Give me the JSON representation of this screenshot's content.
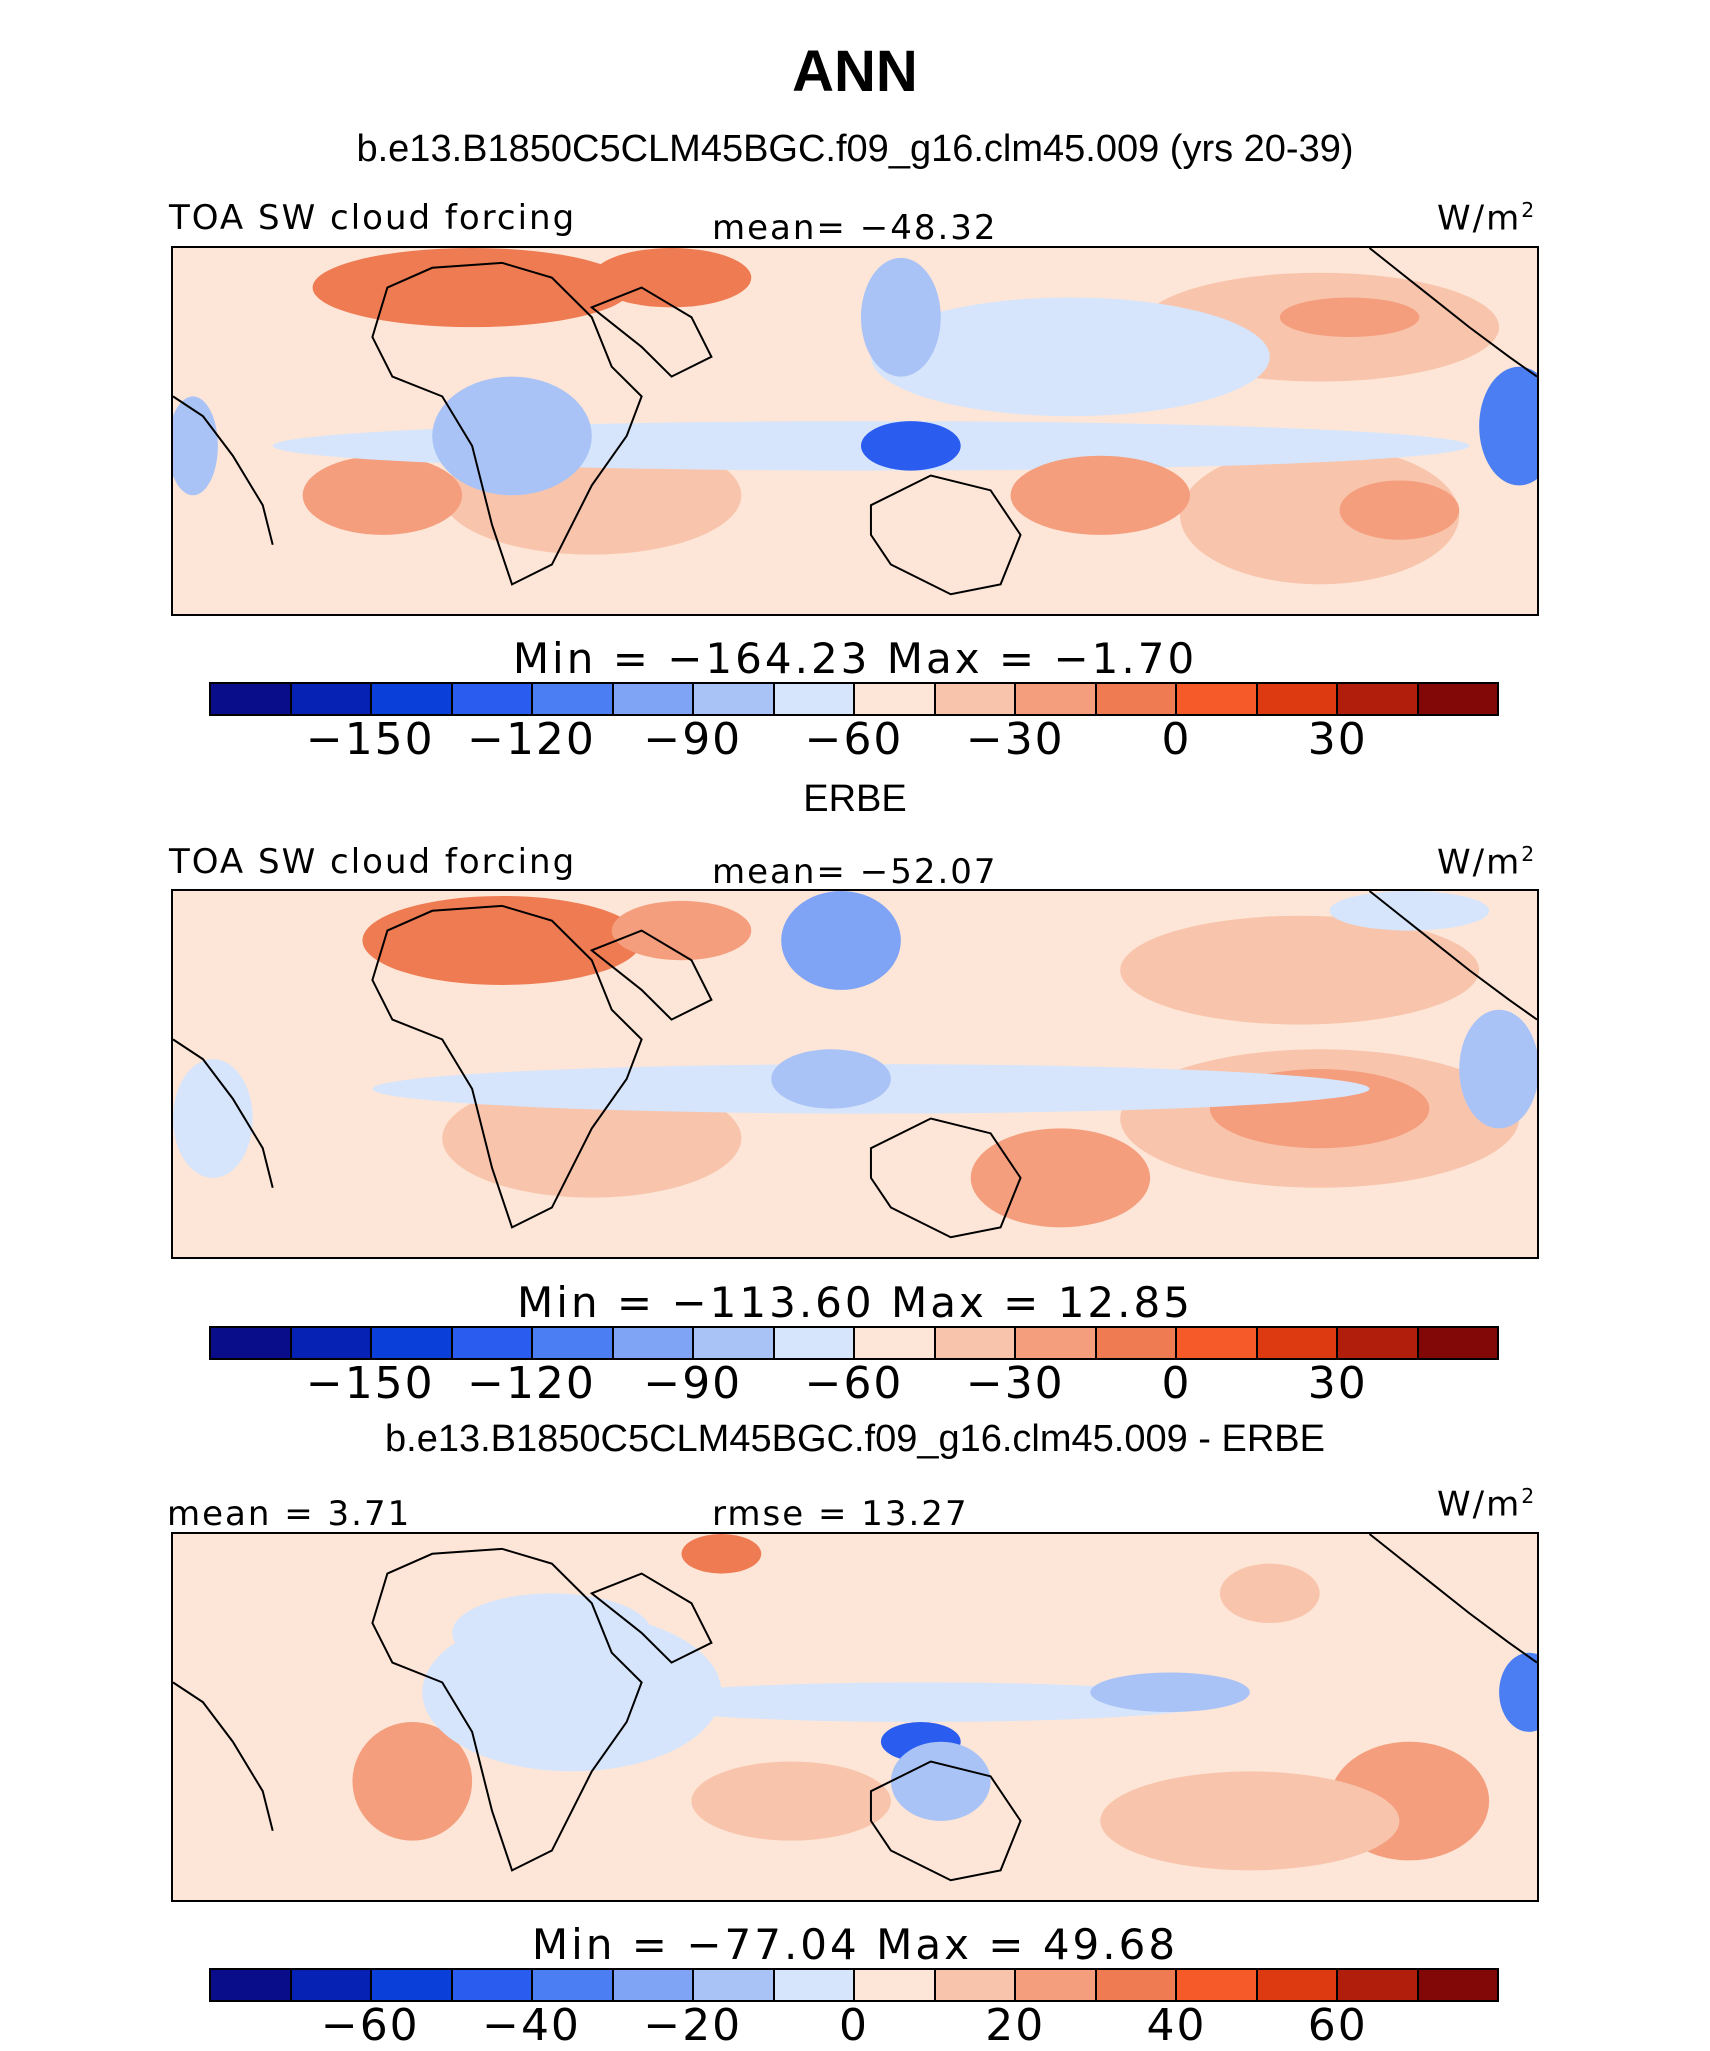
{
  "title": "ANN",
  "colors": [
    "#0a0d8a",
    "#0622b5",
    "#0a3fd9",
    "#2a5cf0",
    "#4a7ef2",
    "#7fa3f5",
    "#a9c3f6",
    "#d6e5fb",
    "#fde6d7",
    "#f8c5ac",
    "#f49e7e",
    "#ef7b53",
    "#f55a28",
    "#dd3a12",
    "#b11f0c",
    "#820808"
  ],
  "panels": [
    {
      "header": "b.e13.B1850C5CLM45BGC.f09_g16.clm45.009 (yrs 20-39)",
      "left_label": "TOA SW cloud forcing",
      "center_label": "mean=  −48.32",
      "units": "W/m",
      "units_sup": "2",
      "minmax": "Min  =  −164.23  Max  =   −1.70",
      "ticks": [
        "−150",
        "−120",
        "−90",
        "−60",
        "−30",
        "0",
        "30"
      ]
    },
    {
      "header": "ERBE",
      "left_label": "TOA SW cloud forcing",
      "center_label": "mean=  −52.07",
      "units": "W/m",
      "units_sup": "2",
      "minmax": "Min  =  −113.60  Max  =   12.85",
      "ticks": [
        "−150",
        "−120",
        "−90",
        "−60",
        "−30",
        "0",
        "30"
      ]
    },
    {
      "header": "b.e13.B1850C5CLM45BGC.f09_g16.clm45.009 - ERBE",
      "left_label": "mean  =    3.71",
      "center_label": "rmse  =   13.27",
      "units": "W/m",
      "units_sup": "2",
      "minmax": "Min  =  −77.04  Max  =   49.68",
      "ticks": [
        "−60",
        "−40",
        "−20",
        "0",
        "20",
        "40",
        "60"
      ]
    }
  ]
}
